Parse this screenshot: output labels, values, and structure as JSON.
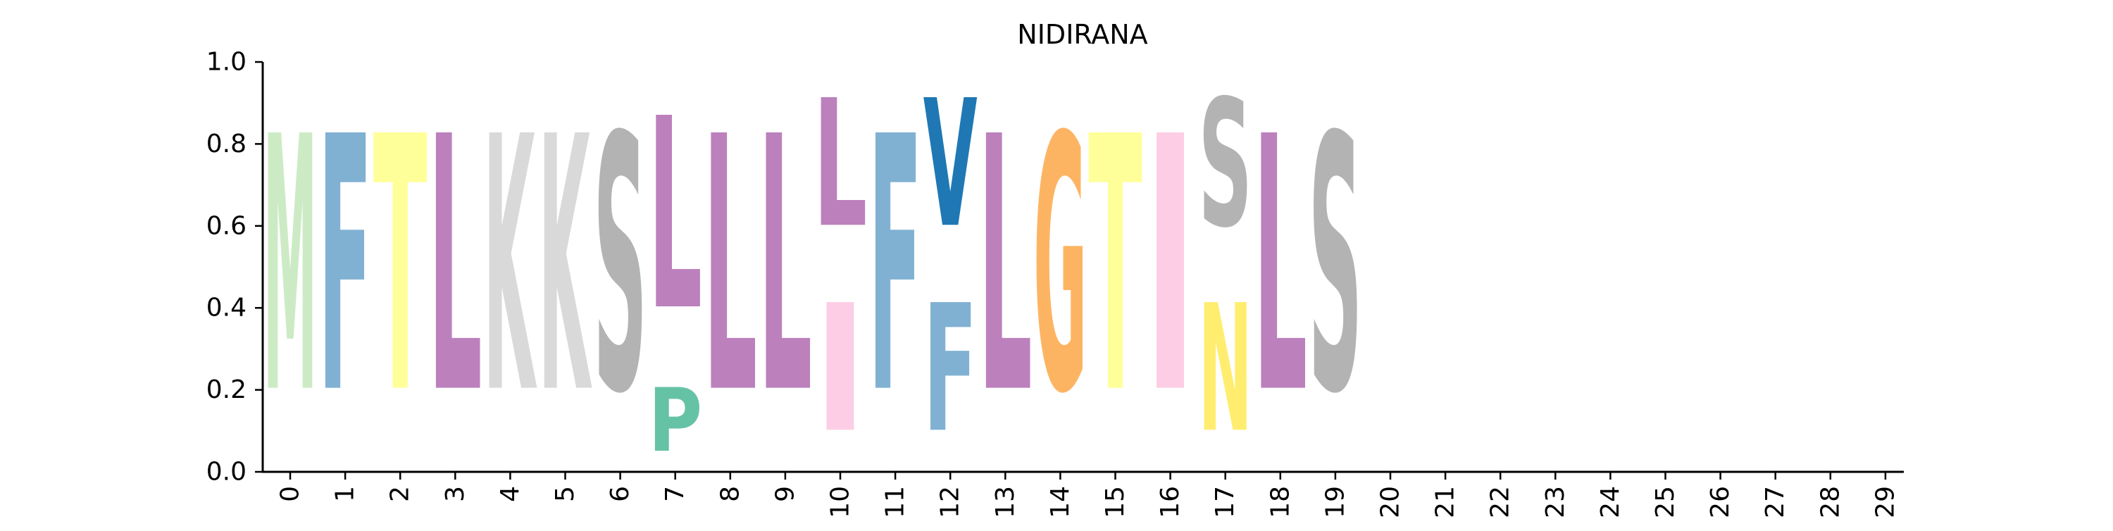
{
  "chart_data": {
    "type": "sequence-logo",
    "title": "NIDIRANA",
    "xlabel": "",
    "ylabel": "",
    "ylim": [
      0,
      1
    ],
    "y_ticks": [
      "0.0",
      "0.2",
      "0.4",
      "0.6",
      "0.8",
      "1.0"
    ],
    "x_ticks": [
      "0",
      "1",
      "2",
      "3",
      "4",
      "5",
      "6",
      "7",
      "8",
      "9",
      "10",
      "11",
      "12",
      "13",
      "14",
      "15",
      "16",
      "17",
      "18",
      "19",
      "20",
      "21",
      "22",
      "23",
      "24",
      "25",
      "26",
      "27",
      "28",
      "29"
    ],
    "positions": [
      {
        "pos": 0,
        "letters": [
          {
            "letter": "M",
            "height": 1.0
          }
        ]
      },
      {
        "pos": 1,
        "letters": [
          {
            "letter": "F",
            "height": 1.0
          }
        ]
      },
      {
        "pos": 2,
        "letters": [
          {
            "letter": "T",
            "height": 1.0
          }
        ]
      },
      {
        "pos": 3,
        "letters": [
          {
            "letter": "L",
            "height": 1.0
          }
        ]
      },
      {
        "pos": 4,
        "letters": [
          {
            "letter": "K",
            "height": 1.0
          }
        ]
      },
      {
        "pos": 5,
        "letters": [
          {
            "letter": "K",
            "height": 1.0
          }
        ]
      },
      {
        "pos": 6,
        "letters": [
          {
            "letter": "S",
            "height": 1.0
          }
        ]
      },
      {
        "pos": 7,
        "letters": [
          {
            "letter": "P",
            "height": 0.25
          },
          {
            "letter": "L",
            "height": 0.75
          }
        ]
      },
      {
        "pos": 8,
        "letters": [
          {
            "letter": "L",
            "height": 1.0
          }
        ]
      },
      {
        "pos": 9,
        "letters": [
          {
            "letter": "L",
            "height": 1.0
          }
        ]
      },
      {
        "pos": 10,
        "letters": [
          {
            "letter": "I",
            "height": 0.5
          },
          {
            "letter": "L",
            "height": 0.5
          }
        ]
      },
      {
        "pos": 11,
        "letters": [
          {
            "letter": "F",
            "height": 1.0
          }
        ]
      },
      {
        "pos": 12,
        "letters": [
          {
            "letter": "F",
            "height": 0.5
          },
          {
            "letter": "V",
            "height": 0.5
          }
        ]
      },
      {
        "pos": 13,
        "letters": [
          {
            "letter": "L",
            "height": 1.0
          }
        ]
      },
      {
        "pos": 14,
        "letters": [
          {
            "letter": "G",
            "height": 1.0
          }
        ]
      },
      {
        "pos": 15,
        "letters": [
          {
            "letter": "T",
            "height": 1.0
          }
        ]
      },
      {
        "pos": 16,
        "letters": [
          {
            "letter": "I",
            "height": 1.0
          }
        ]
      },
      {
        "pos": 17,
        "letters": [
          {
            "letter": "N",
            "height": 0.5
          },
          {
            "letter": "S",
            "height": 0.5
          }
        ]
      },
      {
        "pos": 18,
        "letters": [
          {
            "letter": "L",
            "height": 1.0
          }
        ]
      },
      {
        "pos": 19,
        "letters": [
          {
            "letter": "S",
            "height": 1.0
          }
        ]
      }
    ],
    "colors": {
      "M": "#ccebc5",
      "F": "#80b1d3",
      "T": "#ffff99",
      "L": "#bc80bd",
      "K": "#d9d9d9",
      "S": "#b3b3b3",
      "P": "#66c2a5",
      "I": "#fccde5",
      "V": "#1f78b4",
      "G": "#fdb462",
      "N": "#ffed6f"
    }
  }
}
